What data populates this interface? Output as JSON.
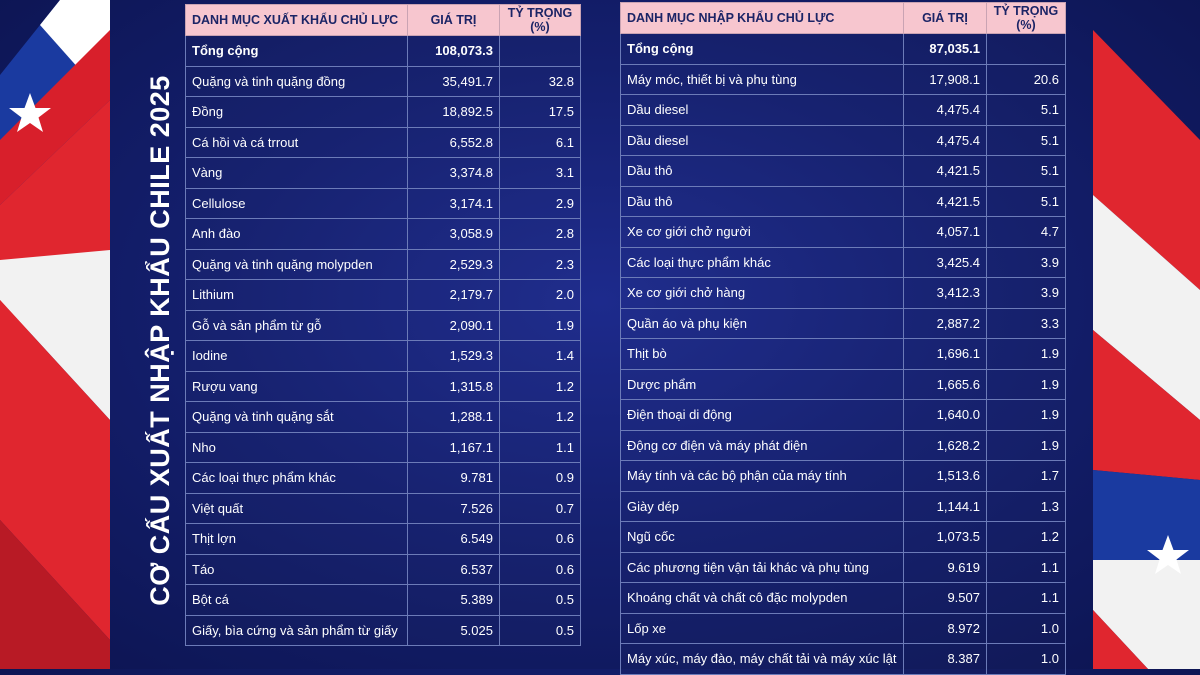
{
  "title": "CƠ CẤU XUẤT NHẬP KHẨU CHILE 2025",
  "colors": {
    "background": "#141f6e",
    "header_bg": "#f7c6cf",
    "flag_red": "#e0262f",
    "flag_blue": "#1a3aa0"
  },
  "export": {
    "headers": [
      "DANH MỤC XUẤT KHẨU CHỦ LỰC",
      "GIÁ TRỊ",
      "TỶ TRỌNG (%)"
    ],
    "rows": [
      [
        "Tổng cộng",
        "108,073.3",
        ""
      ],
      [
        "Quặng và tinh quặng đồng",
        "35,491.7",
        "32.8"
      ],
      [
        "Đồng",
        "18,892.5",
        "17.5"
      ],
      [
        "Cá hồi và cá trrout",
        "6,552.8",
        "6.1"
      ],
      [
        "Vàng",
        "3,374.8",
        "3.1"
      ],
      [
        "Cellulose",
        "3,174.1",
        "2.9"
      ],
      [
        "Anh đào",
        "3,058.9",
        "2.8"
      ],
      [
        "Quặng và tinh quặng molypden",
        "2,529.3",
        "2.3"
      ],
      [
        "Lithium",
        "2,179.7",
        "2.0"
      ],
      [
        "Gỗ và sản phẩm từ gỗ",
        "2,090.1",
        "1.9"
      ],
      [
        "Iodine",
        "1,529.3",
        "1.4"
      ],
      [
        "Rượu vang",
        "1,315.8",
        "1.2"
      ],
      [
        "Quặng và tinh quặng sắt",
        "1,288.1",
        "1.2"
      ],
      [
        "Nho",
        "1,167.1",
        "1.1"
      ],
      [
        "Các loại thực phẩm khác",
        "9.781",
        "0.9"
      ],
      [
        "Việt quất",
        "7.526",
        "0.7"
      ],
      [
        "Thịt lợn",
        "6.549",
        "0.6"
      ],
      [
        "Táo",
        "6.537",
        "0.6"
      ],
      [
        "Bột cá",
        "5.389",
        "0.5"
      ],
      [
        "Giấy, bìa cứng và sản phẩm từ giấy",
        "5.025",
        "0.5"
      ]
    ]
  },
  "import": {
    "headers": [
      "DANH MỤC NHẬP KHẨU CHỦ LỰC",
      "GIÁ TRỊ",
      "TỶ TRỌNG (%)"
    ],
    "rows": [
      [
        "Tổng cộng",
        "87,035.1",
        ""
      ],
      [
        "Máy móc, thiết bị và phụ tùng",
        "17,908.1",
        "20.6"
      ],
      [
        "Dầu diesel",
        "4,475.4",
        "5.1"
      ],
      [
        "Dầu diesel",
        "4,475.4",
        "5.1"
      ],
      [
        "Dầu thô",
        "4,421.5",
        "5.1"
      ],
      [
        "Dầu thô",
        "4,421.5",
        "5.1"
      ],
      [
        "Xe cơ giới chở người",
        "4,057.1",
        "4.7"
      ],
      [
        "Các loại thực phẩm khác",
        "3,425.4",
        "3.9"
      ],
      [
        "Xe cơ giới chở hàng",
        "3,412.3",
        "3.9"
      ],
      [
        "Quần áo và phụ kiện",
        "2,887.2",
        "3.3"
      ],
      [
        "Thịt bò",
        "1,696.1",
        "1.9"
      ],
      [
        "Dược phẩm",
        "1,665.6",
        "1.9"
      ],
      [
        "Điện thoại di động",
        "1,640.0",
        "1.9"
      ],
      [
        "Động cơ điện và máy phát điện",
        "1,628.2",
        "1.9"
      ],
      [
        "Máy tính và các bộ phận của máy tính",
        "1,513.6",
        "1.7"
      ],
      [
        "Giày dép",
        "1,144.1",
        "1.3"
      ],
      [
        "Ngũ cốc",
        "1,073.5",
        "1.2"
      ],
      [
        "Các phương tiện vận tải khác và phụ tùng",
        "9.619",
        "1.1"
      ],
      [
        "Khoáng chất và chất cô đặc molypden",
        "9.507",
        "1.1"
      ],
      [
        "Lốp xe",
        "8.972",
        "1.0"
      ],
      [
        "Máy xúc, máy đào, máy chất tải và máy xúc lật",
        "8.387",
        "1.0"
      ]
    ]
  }
}
